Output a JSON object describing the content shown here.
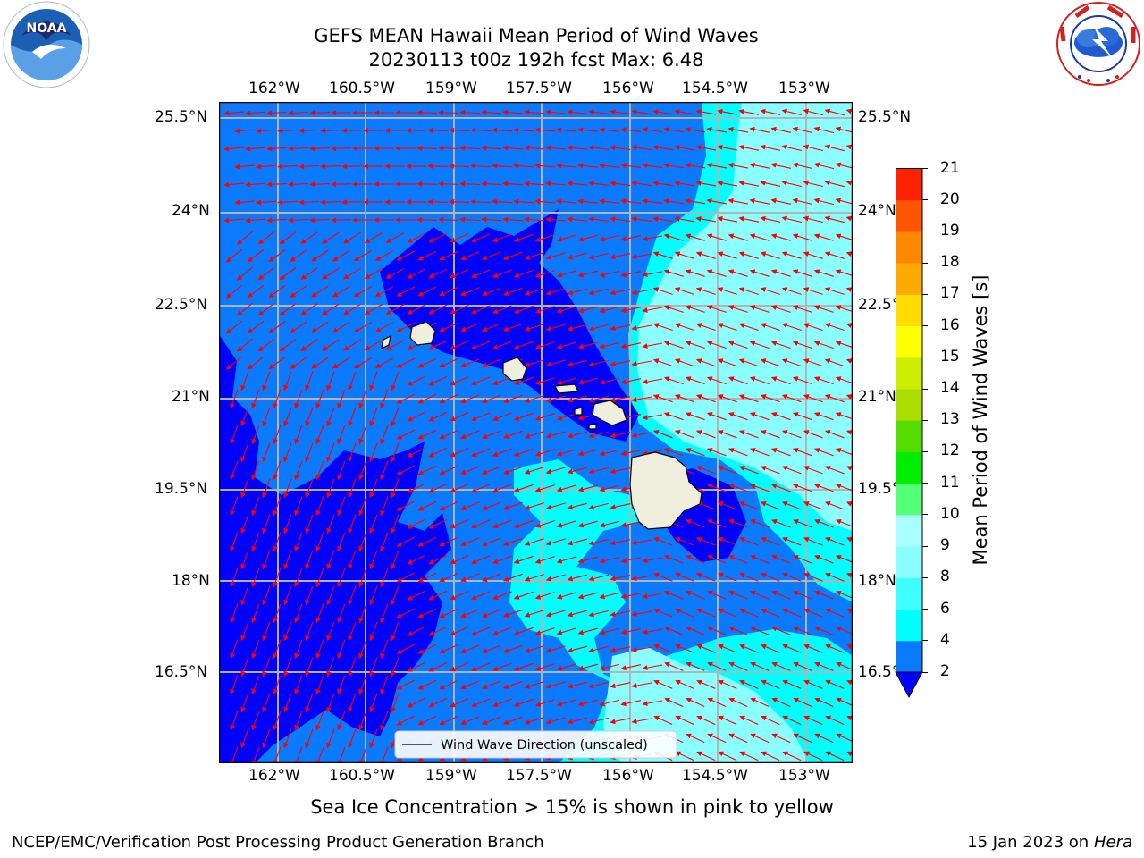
{
  "header": {
    "title_line1": "GEFS MEAN Hawaii Mean Period of Wind Waves",
    "title_line2": "20230113 t00z 192h fcst   Max: 6.48"
  },
  "logos": {
    "noaa_text": "NOAA",
    "noaa_ring_text": "NATIONAL OCEANIC AND ATMOSPHERIC ADMINISTRATION · U.S. DEPARTMENT OF COMMERCE",
    "nws_ring_text": "NATIONAL WEATHER SERVICE"
  },
  "map": {
    "lon_labels": [
      "162°W",
      "160.5°W",
      "159°W",
      "157.5°W",
      "156°W",
      "154.5°W",
      "153°W"
    ],
    "lat_labels": [
      "25.5°N",
      "24°N",
      "22.5°N",
      "21°N",
      "19.5°N",
      "18°N",
      "16.5°N"
    ],
    "legend_label": "Wind Wave Direction (unscaled)"
  },
  "colorbar": {
    "label": "Mean Period of Wind Waves [s]",
    "ticks": [
      "2",
      "4",
      "6",
      "8",
      "9",
      "10",
      "11",
      "12",
      "13",
      "14",
      "15",
      "16",
      "17",
      "18",
      "19",
      "20",
      "21"
    ],
    "colors": [
      "#0a7aff",
      "#00ffff",
      "#40ffff",
      "#8affff",
      "#aaffff",
      "#55ff77",
      "#00ee00",
      "#55dd00",
      "#aadd00",
      "#ccee00",
      "#ffff00",
      "#ffdd00",
      "#ffaa00",
      "#ff8800",
      "#ff5500",
      "#ff2200",
      "#ff0000"
    ],
    "under_color": "#0000ff"
  },
  "footer": {
    "note": "Sea Ice Concentration > 15% is shown in pink to yellow",
    "left": "NCEP/EMC/Verification Post Processing Product Generation Branch",
    "right_date": "15 Jan 2023 on ",
    "right_machine": "Hera"
  }
}
